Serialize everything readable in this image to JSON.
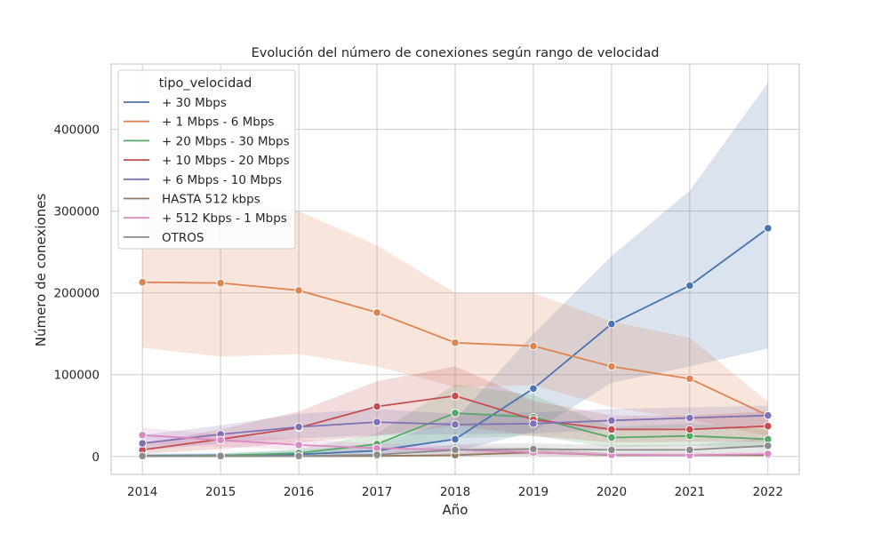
{
  "chart_data": {
    "type": "line",
    "title": "Evolución del número de conexiones según rango de velocidad",
    "xlabel": "Año",
    "ylabel": "Número de conexiones",
    "x": [
      2014,
      2015,
      2016,
      2017,
      2018,
      2019,
      2020,
      2021,
      2022
    ],
    "xlim": [
      2013.6,
      2022.4
    ],
    "ylim": [
      -22000,
      480000
    ],
    "yticks": [
      0,
      100000,
      200000,
      300000,
      400000
    ],
    "grid": true,
    "legend_title": "tipo_velocidad",
    "legend_placement": "top-left",
    "series": [
      {
        "name": "+ 30 Mbps",
        "color": "#4c72b0",
        "values": [
          1000,
          1500,
          2500,
          7000,
          21000,
          83000,
          162000,
          209000,
          279000
        ],
        "lower": [
          0,
          0,
          0,
          2000,
          6000,
          30000,
          90000,
          110000,
          132000
        ],
        "upper": [
          3000,
          4000,
          7000,
          15000,
          45000,
          150000,
          245000,
          325000,
          457000
        ]
      },
      {
        "name": "+ 1 Mbps - 6 Mbps",
        "color": "#dd8452",
        "values": [
          213000,
          212000,
          203000,
          176000,
          139000,
          135000,
          110000,
          95000,
          50000
        ],
        "lower": [
          133000,
          122000,
          125000,
          110000,
          85000,
          87000,
          60000,
          45000,
          25000
        ],
        "upper": [
          325000,
          316000,
          300000,
          258000,
          200000,
          200000,
          165000,
          145000,
          67000
        ]
      },
      {
        "name": "+ 20 Mbps - 30 Mbps",
        "color": "#55a868",
        "values": [
          500,
          1000,
          4000,
          15000,
          53000,
          48000,
          23000,
          25000,
          21000
        ],
        "lower": [
          0,
          0,
          1000,
          5000,
          22000,
          25000,
          11000,
          13000,
          10000
        ],
        "upper": [
          2000,
          3000,
          9000,
          28000,
          88000,
          75000,
          36000,
          40000,
          33000
        ]
      },
      {
        "name": "+ 10 Mbps - 20 Mbps",
        "color": "#c44e52",
        "values": [
          8000,
          21000,
          35000,
          61000,
          74000,
          45000,
          33000,
          33000,
          37000
        ],
        "lower": [
          3000,
          9000,
          17000,
          25000,
          38000,
          25000,
          17000,
          18000,
          18000
        ],
        "upper": [
          15000,
          33000,
          55000,
          92000,
          110000,
          68000,
          50000,
          50000,
          55000
        ]
      },
      {
        "name": "+ 6 Mbps - 10 Mbps",
        "color": "#8172b3",
        "values": [
          16000,
          27000,
          36000,
          42000,
          39000,
          40000,
          44000,
          47000,
          50000
        ],
        "lower": [
          7000,
          16000,
          22000,
          26000,
          27000,
          28000,
          33000,
          35000,
          36000
        ],
        "upper": [
          26000,
          38000,
          52000,
          58000,
          52000,
          54000,
          58000,
          60000,
          62000
        ]
      },
      {
        "name": "HASTA 512 kbps",
        "color": "#937860",
        "values": [
          200,
          200,
          200,
          500,
          1500,
          5000,
          1500,
          1500,
          1500
        ],
        "lower": [
          0,
          0,
          0,
          0,
          200,
          1000,
          200,
          200,
          200
        ],
        "upper": [
          500,
          500,
          500,
          1500,
          4000,
          11000,
          3500,
          3500,
          3500
        ]
      },
      {
        "name": "+ 512 Kbps - 1 Mbps",
        "color": "#da8bc3",
        "values": [
          26000,
          20000,
          14000,
          10000,
          8000,
          5000,
          2000,
          1500,
          3000
        ],
        "lower": [
          15000,
          12000,
          8000,
          5000,
          3000,
          1500,
          500,
          500,
          1000
        ],
        "upper": [
          35000,
          27000,
          21000,
          16000,
          13000,
          10000,
          4000,
          3500,
          6000
        ]
      },
      {
        "name": "OTROS",
        "color": "#8c8c8c",
        "values": [
          500,
          500,
          500,
          2000,
          8000,
          9000,
          8000,
          8000,
          13000
        ],
        "lower": [
          0,
          0,
          0,
          0,
          2000,
          3000,
          3000,
          3000,
          5000
        ],
        "upper": [
          1500,
          1500,
          1500,
          5000,
          15000,
          16000,
          14000,
          14000,
          22000
        ]
      }
    ]
  }
}
